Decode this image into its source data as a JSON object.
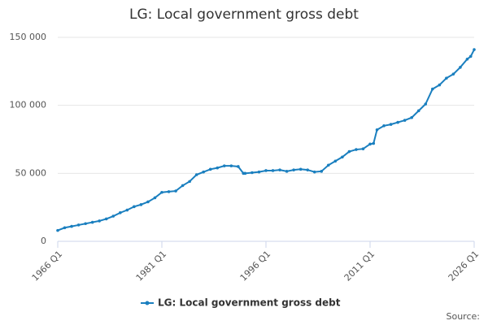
{
  "chart_data": {
    "type": "line",
    "title": "LG: Local government gross debt",
    "source": "Source:",
    "x": [
      1966,
      1967,
      1968,
      1969,
      1970,
      1971,
      1972,
      1973,
      1974,
      1975,
      1976,
      1977,
      1978,
      1979,
      1980,
      1981,
      1982,
      1983,
      1984,
      1985,
      1986,
      1987,
      1988,
      1989,
      1990,
      1991,
      1992,
      1992.75,
      1993,
      1994,
      1995,
      1996,
      1997,
      1998,
      1999,
      2000,
      2001,
      2002,
      2003,
      2004,
      2005,
      2006,
      2007,
      2008,
      2009,
      2010,
      2011,
      2011.5,
      2012,
      2013,
      2014,
      2015,
      2016,
      2017,
      2018,
      2019,
      2020,
      2021,
      2022,
      2023,
      2024,
      2025,
      2025.5,
      2026
    ],
    "series": [
      {
        "name": "LG: Local government gross debt",
        "color": "#1a7fbf",
        "values": [
          8000,
          10000,
          11000,
          12000,
          13000,
          14000,
          15000,
          16500,
          18500,
          21000,
          23000,
          25500,
          27000,
          29000,
          32000,
          36000,
          36500,
          37000,
          41000,
          44000,
          49000,
          51000,
          53000,
          54000,
          55500,
          55500,
          55000,
          50000,
          50000,
          50500,
          51000,
          52000,
          52000,
          52500,
          51500,
          52500,
          53000,
          52500,
          51000,
          51500,
          56000,
          59000,
          62000,
          66000,
          67500,
          68000,
          71500,
          72000,
          82000,
          85000,
          86000,
          87500,
          89000,
          91000,
          96000,
          101000,
          112000,
          115000,
          120000,
          123000,
          128000,
          134000,
          136000,
          141000
        ]
      }
    ],
    "xlim": [
      1966,
      2026
    ],
    "xticks": [
      {
        "value": 1966,
        "label": "1966 Q1"
      },
      {
        "value": 1981,
        "label": "1981 Q1"
      },
      {
        "value": 1996,
        "label": "1996 Q1"
      },
      {
        "value": 2011,
        "label": "2011 Q1"
      },
      {
        "value": 2026,
        "label": "2026 Q1"
      }
    ],
    "ylim": [
      0,
      150000
    ],
    "yticks": [
      0,
      {
        "value": 50000,
        "label": "50 000"
      },
      {
        "value": 100000,
        "label": "100 000"
      },
      {
        "value": 150000,
        "label": "150 000"
      }
    ],
    "grid": true,
    "legend": "bottom"
  }
}
